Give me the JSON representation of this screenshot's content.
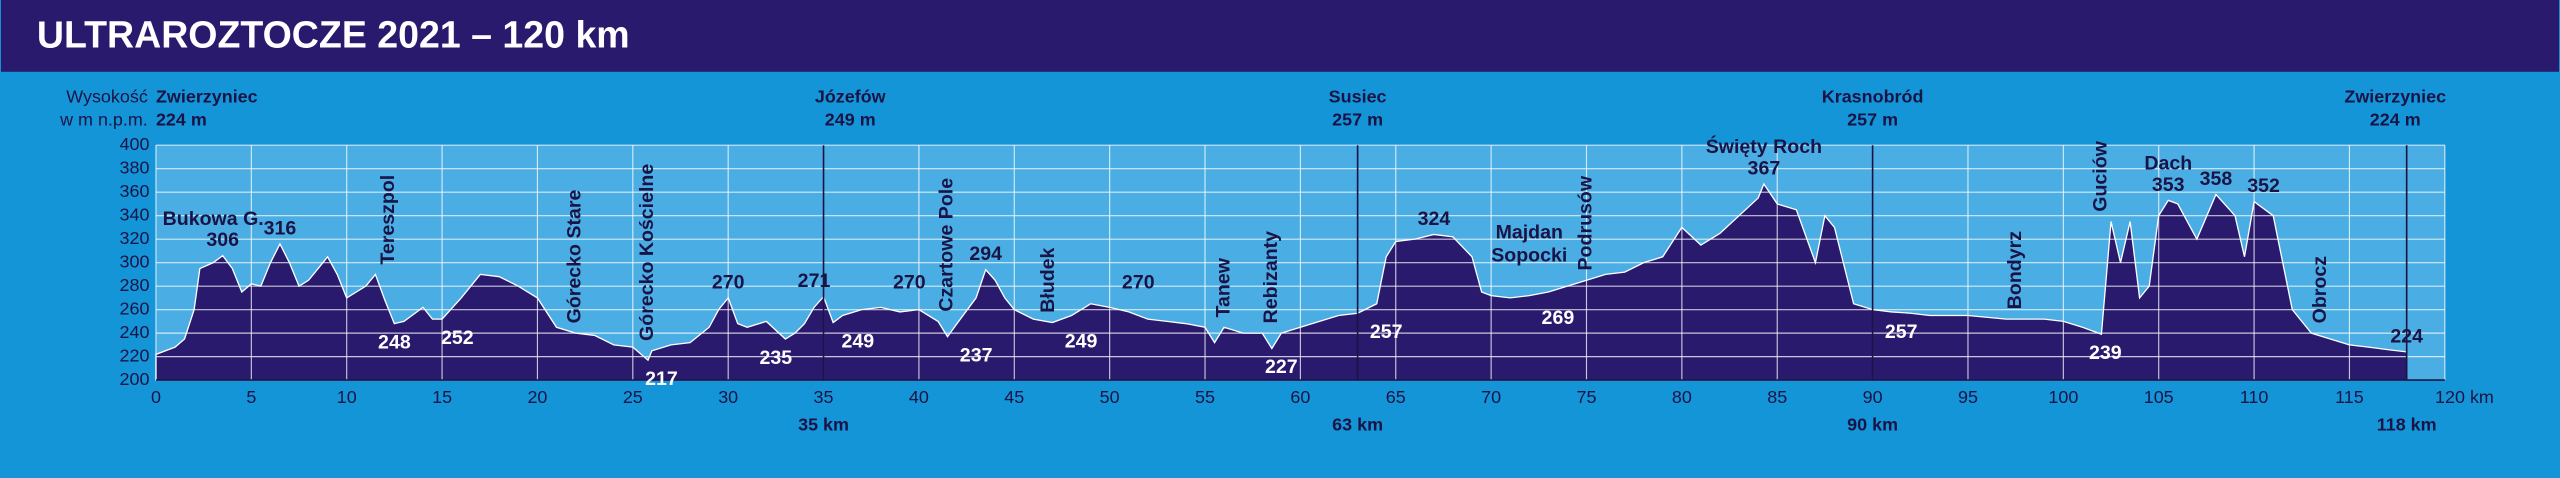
{
  "chart_data": {
    "type": "area",
    "title": "ULTRAROZTOCZE 2021 – 120 km",
    "y_label": [
      "Wysokość",
      "w m n.p.m."
    ],
    "color": "#2a1a6e",
    "grid": true,
    "xlim": [
      0,
      120
    ],
    "ylim": [
      200,
      400
    ],
    "xticks": [
      0,
      5,
      10,
      15,
      20,
      25,
      30,
      35,
      40,
      45,
      50,
      55,
      60,
      65,
      70,
      75,
      80,
      85,
      90,
      95,
      100,
      105,
      110,
      115,
      {
        "value": 120,
        "label": "120 km"
      }
    ],
    "yticks": [
      200,
      220,
      240,
      260,
      280,
      300,
      320,
      340,
      360,
      380,
      400
    ],
    "x": [
      0,
      1,
      1.5,
      2,
      2.3,
      3,
      3.5,
      4,
      4.5,
      5,
      5.5,
      6,
      6.5,
      7,
      7.5,
      8,
      8.5,
      9,
      9.5,
      10,
      11,
      11.5,
      12,
      12.5,
      13,
      14,
      14.5,
      15,
      16,
      17,
      18,
      19,
      20,
      21,
      22,
      23,
      24,
      25,
      25.8,
      26,
      27,
      28,
      29,
      29.5,
      30,
      30.5,
      31,
      32,
      33,
      33.5,
      34,
      34.5,
      35,
      35.5,
      36,
      37,
      38,
      39,
      40,
      41,
      41.5,
      42,
      43,
      43.5,
      44,
      44.5,
      45,
      46,
      47,
      48,
      49,
      50,
      51,
      52,
      53,
      54,
      55,
      55.5,
      56,
      57,
      58,
      58.5,
      59,
      60,
      61,
      62,
      63,
      64,
      64.5,
      65,
      66,
      67,
      68,
      69,
      69.5,
      70,
      71,
      72,
      73,
      74,
      75,
      76,
      77,
      78,
      79,
      80,
      81,
      82,
      83,
      84,
      84.3,
      85,
      86,
      87,
      87.5,
      88,
      89,
      90,
      91,
      92,
      93,
      95,
      97,
      99,
      100,
      101,
      102,
      102.5,
      103,
      103.5,
      104,
      104.5,
      105,
      105.5,
      106,
      107,
      108,
      109,
      109.5,
      110,
      111,
      112,
      113,
      114,
      115,
      116,
      117,
      118
    ],
    "values": [
      222,
      228,
      235,
      260,
      295,
      300,
      306,
      295,
      275,
      282,
      280,
      300,
      316,
      300,
      280,
      285,
      295,
      305,
      290,
      270,
      280,
      290,
      268,
      248,
      250,
      262,
      252,
      252,
      270,
      290,
      288,
      280,
      270,
      245,
      240,
      238,
      230,
      228,
      217,
      225,
      230,
      232,
      245,
      260,
      270,
      248,
      245,
      250,
      235,
      240,
      248,
      262,
      271,
      249,
      255,
      260,
      262,
      258,
      260,
      250,
      237,
      248,
      270,
      294,
      285,
      270,
      260,
      252,
      249,
      255,
      265,
      262,
      258,
      252,
      250,
      248,
      245,
      232,
      245,
      240,
      240,
      227,
      240,
      245,
      250,
      255,
      257,
      265,
      305,
      318,
      320,
      324,
      322,
      305,
      275,
      272,
      270,
      272,
      275,
      280,
      285,
      290,
      292,
      300,
      305,
      330,
      315,
      325,
      340,
      355,
      367,
      350,
      345,
      300,
      340,
      330,
      265,
      260,
      258,
      257,
      255,
      255,
      252,
      252,
      250,
      245,
      239,
      335,
      300,
      335,
      270,
      280,
      340,
      353,
      350,
      320,
      358,
      340,
      305,
      352,
      340,
      260,
      240,
      235,
      230,
      228,
      226,
      224
    ],
    "towns": [
      {
        "name": "Zwierzyniec",
        "elevation": "224 m",
        "x": 0
      },
      {
        "name": "Józefów",
        "elevation": "249 m",
        "x": 36.4
      },
      {
        "name": "Susiec",
        "elevation": "257 m",
        "x": 63
      },
      {
        "name": "Krasnobród",
        "elevation": "257 m",
        "x": 90
      },
      {
        "name": "Zwierzyniec",
        "elevation": "224 m",
        "x": 117.4
      }
    ],
    "places": [
      {
        "name": [
          "Bukowa G."
        ],
        "x": 3,
        "rotated": false
      },
      {
        "name": [
          "Tereszpol"
        ],
        "x": 12.2,
        "rotated": true
      },
      {
        "name": [
          "Górecko Stare"
        ],
        "x": 22,
        "rotated": true
      },
      {
        "name": [
          "Górecko Kościelne"
        ],
        "x": 25.8,
        "rotated": true
      },
      {
        "name": [
          "Czartowe Pole"
        ],
        "x": 41.5,
        "rotated": true
      },
      {
        "name": [
          "Błudek"
        ],
        "x": 46.8,
        "rotated": true
      },
      {
        "name": [
          "Tanew"
        ],
        "x": 56,
        "rotated": true
      },
      {
        "name": [
          "Rebizanty"
        ],
        "x": 58.5,
        "rotated": true
      },
      {
        "name": [
          "Majdan",
          "Sopocki"
        ],
        "x": 72,
        "rotated": false
      },
      {
        "name": [
          "Podrusów"
        ],
        "x": 75,
        "rotated": true
      },
      {
        "name": [
          "Święty Roch"
        ],
        "x": 84.3,
        "rotated": false
      },
      {
        "name": [
          "Bondyrz"
        ],
        "x": 97.5,
        "rotated": true
      },
      {
        "name": [
          "Guciów"
        ],
        "x": 102,
        "rotated": true
      },
      {
        "name": [
          "Dach"
        ],
        "x": 105.5,
        "rotated": false
      },
      {
        "name": [
          "Obrocz"
        ],
        "x": 113.5,
        "rotated": true
      }
    ],
    "elevation_labels": [
      {
        "x": 3.5,
        "value": 306,
        "color": "black"
      },
      {
        "x": 6.5,
        "value": 316,
        "color": "black"
      },
      {
        "x": 12.5,
        "value": 248,
        "color": "white"
      },
      {
        "x": 15.8,
        "value": 252,
        "color": "white"
      },
      {
        "x": 26.5,
        "value": 217,
        "color": "white"
      },
      {
        "x": 30,
        "value": 270,
        "color": "black"
      },
      {
        "x": 32.5,
        "value": 235,
        "color": "white"
      },
      {
        "x": 34.5,
        "value": 271,
        "color": "black"
      },
      {
        "x": 36.8,
        "value": 249,
        "color": "white"
      },
      {
        "x": 39.5,
        "value": 270,
        "color": "black"
      },
      {
        "x": 43,
        "value": 237,
        "color": "white"
      },
      {
        "x": 43.5,
        "value": 294,
        "color": "black"
      },
      {
        "x": 48.5,
        "value": 249,
        "color": "white"
      },
      {
        "x": 51.5,
        "value": 270,
        "color": "black"
      },
      {
        "x": 59,
        "value": 227,
        "color": "white"
      },
      {
        "x": 64.5,
        "value": 257,
        "color": "white"
      },
      {
        "x": 67,
        "value": 324,
        "color": "black"
      },
      {
        "x": 73.5,
        "value": 269,
        "color": "white"
      },
      {
        "x": 84.3,
        "value": 367,
        "color": "black"
      },
      {
        "x": 91.5,
        "value": 257,
        "color": "white"
      },
      {
        "x": 102.2,
        "value": 239,
        "color": "white"
      },
      {
        "x": 105.5,
        "value": 353,
        "color": "black"
      },
      {
        "x": 108,
        "value": 358,
        "color": "black"
      },
      {
        "x": 110.5,
        "value": 352,
        "color": "black"
      },
      {
        "x": 118,
        "value": 224,
        "color": "black"
      }
    ],
    "checkpoints": [
      {
        "value": 35,
        "label": "35 km"
      },
      {
        "value": 63,
        "label": "63 km"
      },
      {
        "value": 90,
        "label": "90 km"
      },
      {
        "value": 118,
        "label": "118 km"
      }
    ]
  }
}
